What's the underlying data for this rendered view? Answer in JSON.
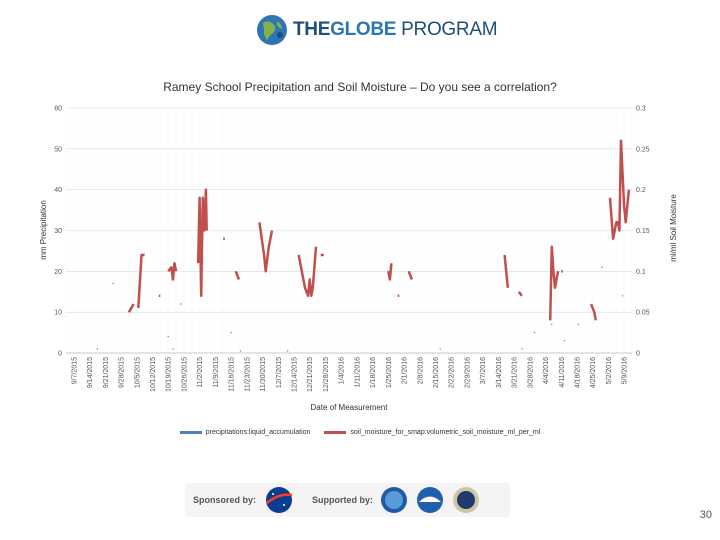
{
  "logo": {
    "the": "THE",
    "globe": "GLOBE",
    "program": " PROGRAM",
    "icon": "globe-icon"
  },
  "page_number": "30",
  "sponsors": {
    "sponsored_label": "Sponsored by:",
    "supported_label": "Supported by:",
    "badges": [
      "nasa-logo",
      "nsf-logo",
      "noaa-logo",
      "state-department-seal"
    ]
  },
  "colors": {
    "precip": "#4f81bd",
    "soil": "#c0504d",
    "grid": "#d9d9d9"
  },
  "chart_data": {
    "type": "line",
    "title": "Ramey School Precipitation and Soil Moisture – Do you see a correlation?",
    "xlabel": "Date of Measurement",
    "ylabel_left": "mm Precipitation",
    "ylabel_right": "ml/ml Soil Moisture",
    "ylim_left": [
      0,
      60
    ],
    "ylim_right": [
      0,
      0.3
    ],
    "yticks_left": [
      "0",
      "10",
      "20",
      "30",
      "40",
      "50",
      "60"
    ],
    "yticks_right": [
      "0",
      "0.05",
      "0.1",
      "0.15",
      "0.2",
      "0.25",
      "0.3"
    ],
    "grid": true,
    "legend_position": "bottom",
    "categories": [
      "9/7/2015",
      "9/14/2015",
      "9/21/2015",
      "9/28/2015",
      "10/5/2015",
      "10/12/2015",
      "10/19/2015",
      "10/26/2015",
      "11/2/2015",
      "11/9/2015",
      "11/16/2015",
      "11/23/2015",
      "11/30/2015",
      "12/7/2015",
      "12/14/2015",
      "12/21/2015",
      "12/28/2015",
      "1/4/2016",
      "1/11/2016",
      "1/18/2016",
      "1/25/2016",
      "2/1/2016",
      "2/8/2016",
      "2/15/2016",
      "2/22/2016",
      "2/29/2016",
      "3/7/2016",
      "3/14/2016",
      "3/21/2016",
      "3/28/2016",
      "4/4/2016",
      "4/11/2016",
      "4/18/2016",
      "4/25/2016",
      "5/2/2016",
      "5/9/2016"
    ],
    "series": [
      {
        "name": "precipitations:liquid_accumulation",
        "axis": "left",
        "points": [
          [
            1.5,
            1
          ],
          [
            2.5,
            17
          ],
          [
            6,
            4
          ],
          [
            6.3,
            1
          ],
          [
            6.8,
            12
          ],
          [
            10,
            5
          ],
          [
            10.6,
            0.5
          ],
          [
            13.6,
            0.5
          ],
          [
            23.3,
            1
          ],
          [
            28.5,
            1
          ],
          [
            29.3,
            5
          ],
          [
            30.4,
            7
          ],
          [
            31.2,
            3
          ],
          [
            32.1,
            7
          ],
          [
            33.6,
            21
          ],
          [
            34.9,
            14
          ]
        ]
      },
      {
        "name": "soil_moisture_for_smap:volumetric_soil_moisture_ml_per_ml",
        "axis": "right",
        "segments": [
          [
            [
              3.5,
              0.05
            ],
            [
              3.8,
              0.06
            ]
          ],
          [
            [
              4.1,
              0.055
            ],
            [
              4.3,
              0.12
            ],
            [
              4.5,
              0.12
            ]
          ],
          [
            [
              5.4,
              0.07
            ],
            [
              5.5,
              0.07
            ]
          ],
          [
            [
              6,
              0.1
            ],
            [
              6.2,
              0.105
            ],
            [
              6.3,
              0.09
            ],
            [
              6.4,
              0.11
            ],
            [
              6.5,
              0.1
            ]
          ],
          [
            [
              7.9,
              0.11
            ],
            [
              8,
              0.19
            ],
            [
              8.1,
              0.07
            ],
            [
              8.2,
              0.19
            ],
            [
              8.3,
              0.15
            ],
            [
              8.4,
              0.2
            ],
            [
              8.45,
              0.15
            ]
          ],
          [
            [
              9.5,
              0.14
            ],
            [
              9.6,
              0.14
            ]
          ],
          [
            [
              10.3,
              0.1
            ],
            [
              10.5,
              0.09
            ]
          ],
          [
            [
              11.8,
              0.16
            ],
            [
              12.1,
              0.12
            ],
            [
              12.2,
              0.1
            ],
            [
              12.4,
              0.13
            ],
            [
              12.5,
              0.14
            ],
            [
              12.6,
              0.15
            ]
          ],
          [
            [
              14.3,
              0.12
            ],
            [
              14.6,
              0.09
            ],
            [
              14.7,
              0.08
            ],
            [
              14.9,
              0.07
            ],
            [
              15,
              0.09
            ],
            [
              15.1,
              0.07
            ],
            [
              15.2,
              0.08
            ],
            [
              15.4,
              0.13
            ]
          ],
          [
            [
              15.7,
              0.12
            ],
            [
              15.9,
              0.12
            ]
          ],
          [
            [
              20,
              0.1
            ],
            [
              20.1,
              0.09
            ],
            [
              20.2,
              0.11
            ]
          ],
          [
            [
              20.6,
              0.07
            ],
            [
              20.7,
              0.07
            ]
          ],
          [
            [
              21.3,
              0.1
            ],
            [
              21.5,
              0.09
            ]
          ],
          [
            [
              27.4,
              0.12
            ],
            [
              27.6,
              0.08
            ]
          ],
          [
            [
              28.3,
              0.075
            ],
            [
              28.5,
              0.07
            ]
          ],
          [
            [
              30.3,
              0.04
            ],
            [
              30.4,
              0.13
            ],
            [
              30.5,
              0.1
            ],
            [
              30.6,
              0.08
            ],
            [
              30.7,
              0.09
            ],
            [
              30.8,
              0.1
            ]
          ],
          [
            [
              31,
              0.1
            ],
            [
              31.1,
              0.1
            ]
          ],
          [
            [
              32.9,
              0.06
            ],
            [
              33.1,
              0.05
            ],
            [
              33.2,
              0.04
            ]
          ],
          [
            [
              34.1,
              0.19
            ],
            [
              34.3,
              0.14
            ],
            [
              34.4,
              0.15
            ],
            [
              34.5,
              0.16
            ],
            [
              34.6,
              0.16
            ],
            [
              34.7,
              0.15
            ],
            [
              34.8,
              0.26
            ],
            [
              35,
              0.18
            ],
            [
              35.1,
              0.16
            ],
            [
              35.3,
              0.2
            ]
          ]
        ]
      }
    ]
  }
}
